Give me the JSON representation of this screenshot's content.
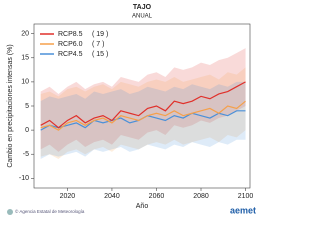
{
  "chart_data": {
    "type": "line",
    "title": "TAJO",
    "subtitle": "ANUAL",
    "y_label": "Cambio en precipitaciones intensas (%)",
    "x_label": "Año",
    "x": [
      2008,
      2012,
      2016,
      2020,
      2024,
      2028,
      2032,
      2036,
      2040,
      2044,
      2048,
      2052,
      2056,
      2060,
      2064,
      2068,
      2072,
      2076,
      2080,
      2084,
      2088,
      2092,
      2096,
      2100
    ],
    "xlim": [
      2005,
      2102
    ],
    "xticks": [
      2020,
      2040,
      2060,
      2080,
      2100
    ],
    "ylim": [
      -12,
      22
    ],
    "yticks": [
      -10,
      -5,
      0,
      5,
      10,
      15,
      20
    ],
    "legend": "top-left",
    "series": [
      {
        "name": "RCP8.5",
        "n_label": "( 19 )",
        "color": "#e0302a",
        "values": [
          1,
          2,
          0.5,
          2,
          3,
          1.5,
          2.5,
          3,
          2,
          4,
          3.5,
          3,
          4.5,
          5,
          4,
          6,
          5.5,
          6,
          7,
          6.5,
          7.5,
          8,
          9,
          10
        ],
        "band_low": [
          -4,
          -3,
          -4.5,
          -3,
          -2,
          -3.5,
          -2.5,
          -2,
          -3,
          -1,
          -1.5,
          -2,
          -0.5,
          0,
          -1,
          1,
          0.5,
          1,
          2,
          1.5,
          2.5,
          3,
          4,
          5
        ],
        "band_high": [
          8,
          9,
          7.5,
          9,
          10,
          8.5,
          9.5,
          10,
          9,
          11,
          10.5,
          10,
          11.5,
          12,
          11,
          13,
          12.5,
          13,
          14,
          13.5,
          14.5,
          15,
          16,
          17
        ]
      },
      {
        "name": "RCP6.0",
        "n_label": "( 7 )",
        "color": "#f5a04a",
        "values": [
          0.5,
          1,
          0,
          1.5,
          2,
          1,
          2,
          2.5,
          1.5,
          3,
          2.5,
          2,
          3,
          3.5,
          3,
          4,
          3,
          3.5,
          4,
          4.5,
          3.5,
          5,
          4.5,
          6
        ],
        "band_low": [
          -5.5,
          -5,
          -6,
          -4.5,
          -4,
          -5,
          -4,
          -3.5,
          -4.5,
          -3,
          -3.5,
          -4,
          -3,
          -2.5,
          -3,
          -2,
          -3,
          -2.5,
          -2,
          -1.5,
          -2.5,
          -1,
          -1.5,
          0
        ],
        "band_high": [
          7.5,
          8,
          7,
          8.5,
          9,
          8,
          9,
          9.5,
          8.5,
          10,
          9.5,
          9,
          10,
          10.5,
          10,
          11,
          10,
          10.5,
          11,
          11.5,
          10.5,
          12,
          11.5,
          13
        ]
      },
      {
        "name": "RCP4.5",
        "n_label": "( 15 )",
        "color": "#4a90d9",
        "values": [
          0,
          1,
          0.5,
          1,
          1.5,
          0.5,
          2,
          1.5,
          2,
          2.5,
          1.5,
          2,
          3,
          2.5,
          2,
          3,
          2.5,
          3.5,
          3,
          2.5,
          3.5,
          3,
          4,
          4
        ],
        "band_low": [
          -6,
          -5,
          -5.5,
          -5,
          -4.5,
          -5.5,
          -4,
          -4.5,
          -4,
          -3.5,
          -4.5,
          -4,
          -3,
          -3.5,
          -4,
          -3,
          -3.5,
          -2.5,
          -3,
          -3.5,
          -2.5,
          -3,
          -2,
          -2
        ],
        "band_high": [
          6,
          7,
          6.5,
          7,
          7.5,
          6.5,
          8,
          7.5,
          8,
          8.5,
          7.5,
          8,
          9,
          8.5,
          8,
          9,
          8.5,
          9.5,
          9,
          8.5,
          9.5,
          9,
          10,
          10
        ]
      }
    ]
  },
  "footer": {
    "credit": "© Agencia Estatal de Meteorología",
    "logo": "aemet"
  }
}
